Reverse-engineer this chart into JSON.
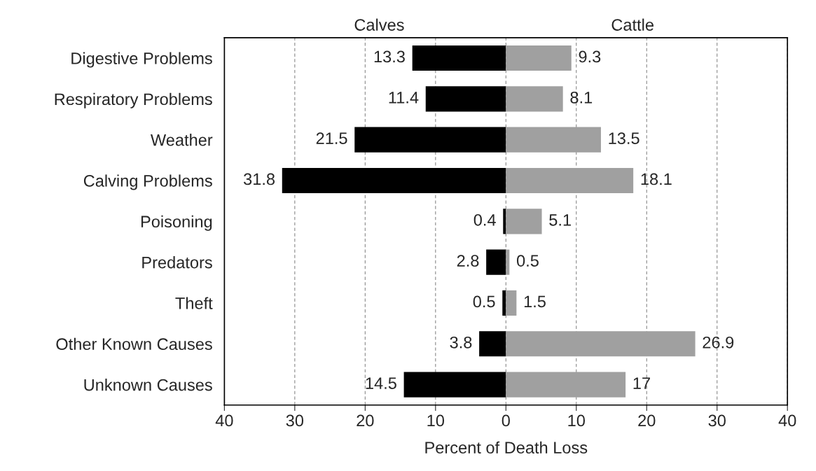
{
  "chart_data": {
    "type": "bar",
    "orientation": "horizontal",
    "xlabel": "Percent of Death Loss",
    "categories": [
      "Digestive Problems",
      "Respiratory Problems",
      "Weather",
      "Calving Problems",
      "Poisoning",
      "Predators",
      "Theft",
      "Other Known Causes",
      "Unknown Causes"
    ],
    "series": [
      {
        "name": "Calves",
        "color": "#000000",
        "values": [
          13.3,
          11.4,
          21.5,
          31.8,
          0.4,
          2.8,
          0.5,
          3.8,
          14.5
        ],
        "base": [
          -13.3,
          -11.4,
          -21.5,
          -31.8,
          -0.4,
          -2.8,
          -0.5,
          -3.8,
          -14.5
        ]
      },
      {
        "name": "Cattle",
        "color": "#a0a0a0",
        "values": [
          9.3,
          8.1,
          13.5,
          18.1,
          5.1,
          0.5,
          1.5,
          26.9,
          17
        ]
      }
    ],
    "data_labels": true,
    "xlim": [
      -40,
      40
    ],
    "xticks": [
      {
        "value": -40,
        "label": "40"
      },
      {
        "value": -30,
        "label": "30"
      },
      {
        "value": -20,
        "label": "20"
      },
      {
        "value": -10,
        "label": "10"
      },
      0,
      10,
      20,
      30,
      40
    ],
    "grid": "x"
  }
}
